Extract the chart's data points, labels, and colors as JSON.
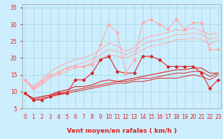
{
  "background_color": "#cceeff",
  "grid_color": "#aadddd",
  "x_label": "Vent moyen/en rafales ( km/h )",
  "x_ticks": [
    0,
    1,
    2,
    3,
    4,
    5,
    6,
    7,
    8,
    9,
    10,
    11,
    12,
    13,
    14,
    15,
    16,
    17,
    18,
    19,
    20,
    21,
    22,
    23
  ],
  "ylim": [
    5,
    36
  ],
  "xlim": [
    -0.3,
    23.3
  ],
  "y_ticks": [
    5,
    10,
    15,
    20,
    25,
    30,
    35
  ],
  "series": [
    {
      "x": [
        0,
        1,
        2,
        3,
        4,
        5,
        6,
        7,
        8,
        9,
        10,
        11,
        12,
        13,
        14,
        15,
        16,
        17,
        18,
        19,
        20,
        21,
        22,
        23
      ],
      "y": [
        9.5,
        7.5,
        7.5,
        8.5,
        9.5,
        9.5,
        13.5,
        13.5,
        15.5,
        19.5,
        20.5,
        16.0,
        15.5,
        15.5,
        20.5,
        20.5,
        19.5,
        17.5,
        17.5,
        17.5,
        17.5,
        15.5,
        11.0,
        13.5
      ],
      "color": "#dd2222",
      "linewidth": 0.8,
      "marker": "D",
      "markersize": 2.0,
      "linestyle": "-"
    },
    {
      "x": [
        0,
        1,
        2,
        3,
        4,
        5,
        6,
        7,
        8,
        9,
        10,
        11,
        12,
        13,
        14,
        15,
        16,
        17,
        18,
        19,
        20,
        21,
        22,
        23
      ],
      "y": [
        9.5,
        8.0,
        8.5,
        9.0,
        10.0,
        10.5,
        11.5,
        11.5,
        12.0,
        13.0,
        13.5,
        13.0,
        13.5,
        14.0,
        14.5,
        15.0,
        15.5,
        16.0,
        16.5,
        16.5,
        17.0,
        17.0,
        15.5,
        15.5
      ],
      "color": "#dd2222",
      "linewidth": 0.8,
      "marker": null,
      "markersize": 0,
      "linestyle": "-"
    },
    {
      "x": [
        0,
        1,
        2,
        3,
        4,
        5,
        6,
        7,
        8,
        9,
        10,
        11,
        12,
        13,
        14,
        15,
        16,
        17,
        18,
        19,
        20,
        21,
        22,
        23
      ],
      "y": [
        9.5,
        8.0,
        8.5,
        9.0,
        9.5,
        10.0,
        10.5,
        11.0,
        11.5,
        12.0,
        12.5,
        13.0,
        13.0,
        13.5,
        14.0,
        14.0,
        14.5,
        15.0,
        15.5,
        15.5,
        16.0,
        16.0,
        14.5,
        15.5
      ],
      "color": "#dd2222",
      "linewidth": 0.7,
      "marker": null,
      "markersize": 0,
      "linestyle": "-"
    },
    {
      "x": [
        0,
        1,
        2,
        3,
        4,
        5,
        6,
        7,
        8,
        9,
        10,
        11,
        12,
        13,
        14,
        15,
        16,
        17,
        18,
        19,
        20,
        21,
        22,
        23
      ],
      "y": [
        9.5,
        7.5,
        8.0,
        8.5,
        9.0,
        9.5,
        10.0,
        10.5,
        11.0,
        11.5,
        12.0,
        12.5,
        12.5,
        13.0,
        13.0,
        13.5,
        14.0,
        14.0,
        14.0,
        14.5,
        15.0,
        14.5,
        13.5,
        15.0
      ],
      "color": "#dd2222",
      "linewidth": 0.7,
      "marker": null,
      "markersize": 0,
      "linestyle": "-"
    },
    {
      "x": [
        0,
        1,
        2,
        3,
        4,
        5,
        6,
        7,
        8,
        9,
        10,
        11,
        12,
        13,
        14,
        15,
        16,
        17,
        18,
        19,
        20,
        21,
        22,
        23
      ],
      "y": [
        13.5,
        11.0,
        13.0,
        15.0,
        15.5,
        17.0,
        17.5,
        17.5,
        18.0,
        24.0,
        30.0,
        27.5,
        15.5,
        19.5,
        30.5,
        31.5,
        30.0,
        28.5,
        31.5,
        28.5,
        30.5,
        30.5,
        22.5,
        22.5
      ],
      "color": "#ffaaaa",
      "linewidth": 0.8,
      "marker": "D",
      "markersize": 2.0,
      "linestyle": "-"
    },
    {
      "x": [
        0,
        1,
        2,
        3,
        4,
        5,
        6,
        7,
        8,
        9,
        10,
        11,
        12,
        13,
        14,
        15,
        16,
        17,
        18,
        19,
        20,
        21,
        22,
        23
      ],
      "y": [
        13.5,
        11.5,
        13.5,
        16.0,
        17.5,
        18.5,
        19.5,
        20.0,
        21.0,
        22.5,
        24.5,
        23.5,
        22.0,
        23.0,
        25.5,
        26.5,
        27.0,
        27.5,
        28.5,
        28.0,
        29.0,
        28.0,
        27.0,
        27.5
      ],
      "color": "#ffaaaa",
      "linewidth": 0.8,
      "marker": null,
      "markersize": 0,
      "linestyle": "-"
    },
    {
      "x": [
        0,
        1,
        2,
        3,
        4,
        5,
        6,
        7,
        8,
        9,
        10,
        11,
        12,
        13,
        14,
        15,
        16,
        17,
        18,
        19,
        20,
        21,
        22,
        23
      ],
      "y": [
        13.5,
        11.0,
        12.5,
        14.5,
        16.0,
        17.0,
        18.0,
        18.5,
        19.5,
        21.0,
        22.5,
        22.0,
        21.0,
        22.0,
        24.0,
        25.0,
        25.5,
        26.0,
        27.0,
        27.0,
        27.5,
        27.0,
        25.5,
        26.5
      ],
      "color": "#ffaaaa",
      "linewidth": 0.7,
      "marker": null,
      "markersize": 0,
      "linestyle": "-"
    },
    {
      "x": [
        0,
        1,
        2,
        3,
        4,
        5,
        6,
        7,
        8,
        9,
        10,
        11,
        12,
        13,
        14,
        15,
        16,
        17,
        18,
        19,
        20,
        21,
        22,
        23
      ],
      "y": [
        13.5,
        10.5,
        12.0,
        14.0,
        15.0,
        16.0,
        17.0,
        17.5,
        18.5,
        19.5,
        21.0,
        20.5,
        20.0,
        21.0,
        22.5,
        23.5,
        24.0,
        24.5,
        25.5,
        25.5,
        26.0,
        25.5,
        24.0,
        25.5
      ],
      "color": "#ffaaaa",
      "linewidth": 0.7,
      "marker": null,
      "markersize": 0,
      "linestyle": "-"
    }
  ],
  "arrow_color": "#dd2222",
  "axis_label_fontsize": 6.5,
  "tick_fontsize": 5.5,
  "tick_color": "#dd2222",
  "label_color": "#dd2222"
}
